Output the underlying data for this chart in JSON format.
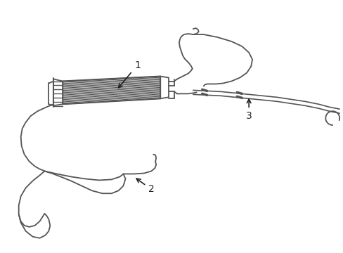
{
  "background_color": "#ffffff",
  "line_color": "#555555",
  "line_width": 1.5,
  "label_fontsize": 10,
  "fig_w": 4.89,
  "fig_h": 3.6,
  "dpi": 100
}
